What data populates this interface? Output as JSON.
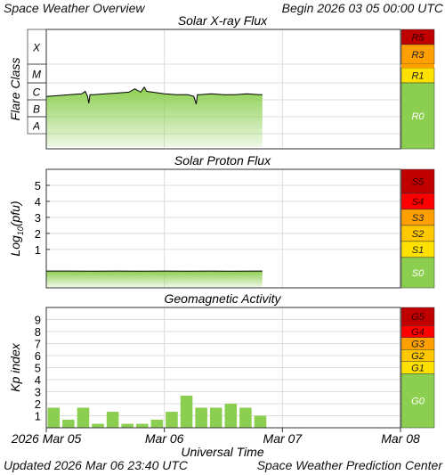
{
  "header": {
    "title": "Space Weather Overview",
    "begin_label": "Begin",
    "begin_date": "2026 03 05 00:00 UTC"
  },
  "footer": {
    "updated_label": "Updated",
    "updated_date": "2026 Mar 06 23:40 UTC",
    "source": "Space Weather Prediction Center"
  },
  "colors": {
    "fill_green": "#8ccf50",
    "line": "#000000",
    "grid": "#dddddd",
    "scale_green": "#8ccf50",
    "scale_yellow": "#ffe100",
    "scale_orange": "#ffa000",
    "scale_red": "#ff0000",
    "scale_darkred": "#c00000"
  },
  "x_axis": {
    "label": "Universal Time",
    "tick_labels": [
      "2026 Mar 05",
      "Mar 06",
      "Mar 07",
      "Mar 08"
    ],
    "range_days": [
      0,
      3
    ]
  },
  "chart_data": [
    {
      "type": "area",
      "title": "Solar X-ray Flux",
      "ylabel": "Flare Class",
      "y_scale": "log",
      "y_tick_labels": [
        "X",
        "M",
        "C",
        "B",
        "A"
      ],
      "x_unit": "days since 2026 Mar 05 00:00 UTC",
      "series": [
        {
          "x": [
            0,
            0.1,
            0.2,
            0.3,
            0.33,
            0.35,
            0.36,
            0.37,
            0.4,
            0.5,
            0.6,
            0.7,
            0.75,
            0.8,
            0.83,
            0.85,
            0.9,
            1.0,
            1.1,
            1.2,
            1.25,
            1.27,
            1.28,
            1.3,
            1.4,
            1.5,
            1.6,
            1.7,
            1.8,
            1.83
          ],
          "y": [
            1.2,
            1.25,
            1.3,
            1.35,
            1.5,
            1.2,
            0.8,
            1.3,
            1.3,
            1.35,
            1.4,
            1.45,
            1.65,
            1.45,
            1.75,
            1.5,
            1.45,
            1.35,
            1.3,
            1.3,
            1.2,
            0.75,
            1.3,
            1.3,
            1.35,
            1.3,
            1.3,
            1.35,
            1.3,
            1.3
          ]
        }
      ],
      "scale": [
        {
          "label": "R5",
          "level": "darkred"
        },
        {
          "label": "R3",
          "level": "orange"
        },
        {
          "label": "R1",
          "level": "yellow"
        },
        {
          "label": "R0",
          "level": "green"
        }
      ]
    },
    {
      "type": "area",
      "title": "Solar Proton Flux",
      "ylabel": "Log10(pfu)",
      "ylim": [
        -1.4,
        6
      ],
      "y_ticks": [
        1,
        2,
        3,
        4,
        5
      ],
      "y_tick_labels": [
        "1",
        "2",
        "3",
        "4",
        "5"
      ],
      "x_unit": "days since 2026 Mar 05 00:00 UTC",
      "series": [
        {
          "x": [
            0,
            0.2,
            0.4,
            0.6,
            0.8,
            1.0,
            1.2,
            1.4,
            1.6,
            1.83
          ],
          "y": [
            -0.35,
            -0.35,
            -0.36,
            -0.35,
            -0.36,
            -0.35,
            -0.36,
            -0.35,
            -0.36,
            -0.35
          ]
        }
      ],
      "scale": [
        {
          "label": "S5",
          "level": "darkred"
        },
        {
          "label": "S4",
          "level": "red"
        },
        {
          "label": "S3",
          "level": "orange"
        },
        {
          "label": "S2",
          "level": "yellowdark"
        },
        {
          "label": "S1",
          "level": "yellow"
        },
        {
          "label": "S0",
          "level": "green"
        }
      ]
    },
    {
      "type": "bar",
      "title": "Geomagnetic Activity",
      "ylabel": "Kp index",
      "ylim": [
        0,
        10
      ],
      "y_ticks": [
        1,
        2,
        3,
        4,
        5,
        6,
        7,
        8,
        9
      ],
      "y_tick_labels": [
        "1",
        "2",
        "3",
        "4",
        "5",
        "6",
        "7",
        "8",
        "9"
      ],
      "bar_interval_hours": 3,
      "values": [
        1.67,
        0.67,
        1.67,
        0.33,
        1.33,
        0.33,
        0.33,
        0.67,
        1.33,
        2.67,
        1.67,
        1.67,
        2.0,
        1.67,
        1.0
      ],
      "scale": [
        {
          "label": "G5",
          "level": "darkred"
        },
        {
          "label": "G4",
          "level": "red"
        },
        {
          "label": "G3",
          "level": "orange"
        },
        {
          "label": "G2",
          "level": "yellowdark"
        },
        {
          "label": "G1",
          "level": "yellow"
        },
        {
          "label": "G0",
          "level": "green"
        }
      ]
    }
  ]
}
